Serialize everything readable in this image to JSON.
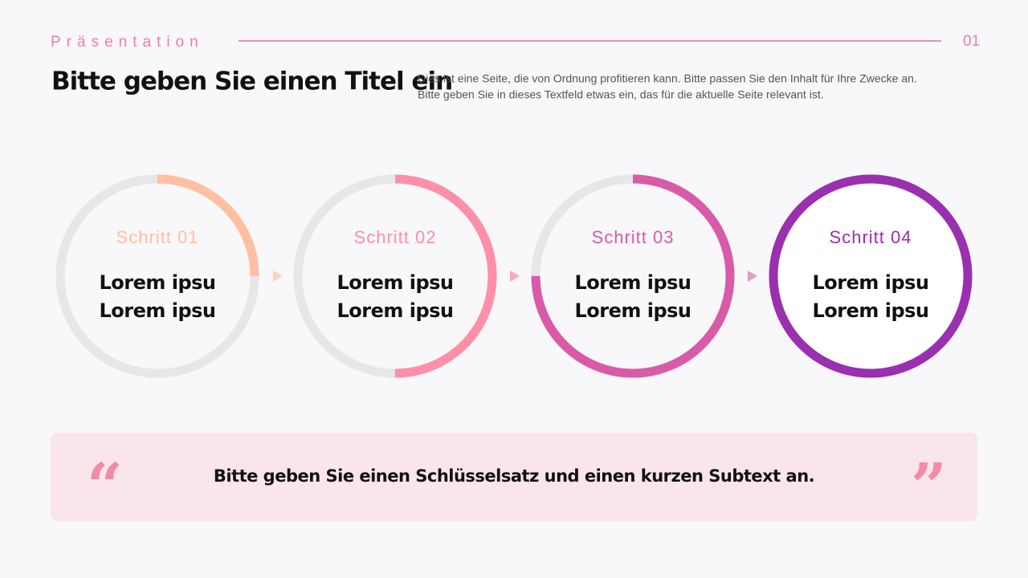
{
  "header": {
    "label": "Präsentation",
    "page": "01"
  },
  "title": "Bitte geben Sie einen Titel ein",
  "description": {
    "lines": [
      "Dies ist eine Seite, die von Ordnung profitieren kann. Bitte passen Sie den Inhalt für Ihre Zwecke an.",
      "Bitte geben Sie in dieses Textfeld etwas ein, das für die aktuelle Seite relevant ist."
    ]
  },
  "steps": [
    {
      "label": "Schritt 01",
      "lines": [
        "Lorem ipsu",
        "Lorem ipsu"
      ]
    },
    {
      "label": "Schritt 02",
      "lines": [
        "Lorem ipsu",
        "Lorem ipsu"
      ]
    },
    {
      "label": "Schritt 03",
      "lines": [
        "Lorem ipsu",
        "Lorem ipsu"
      ]
    },
    {
      "label": "Schritt 04",
      "lines": [
        "Lorem ipsu",
        "Lorem ipsu"
      ]
    }
  ],
  "quote": {
    "open": "“",
    "text": "Bitte geben Sie einen Schlüsselsatz und einen kurzen Subtext an.",
    "close": "”"
  }
}
